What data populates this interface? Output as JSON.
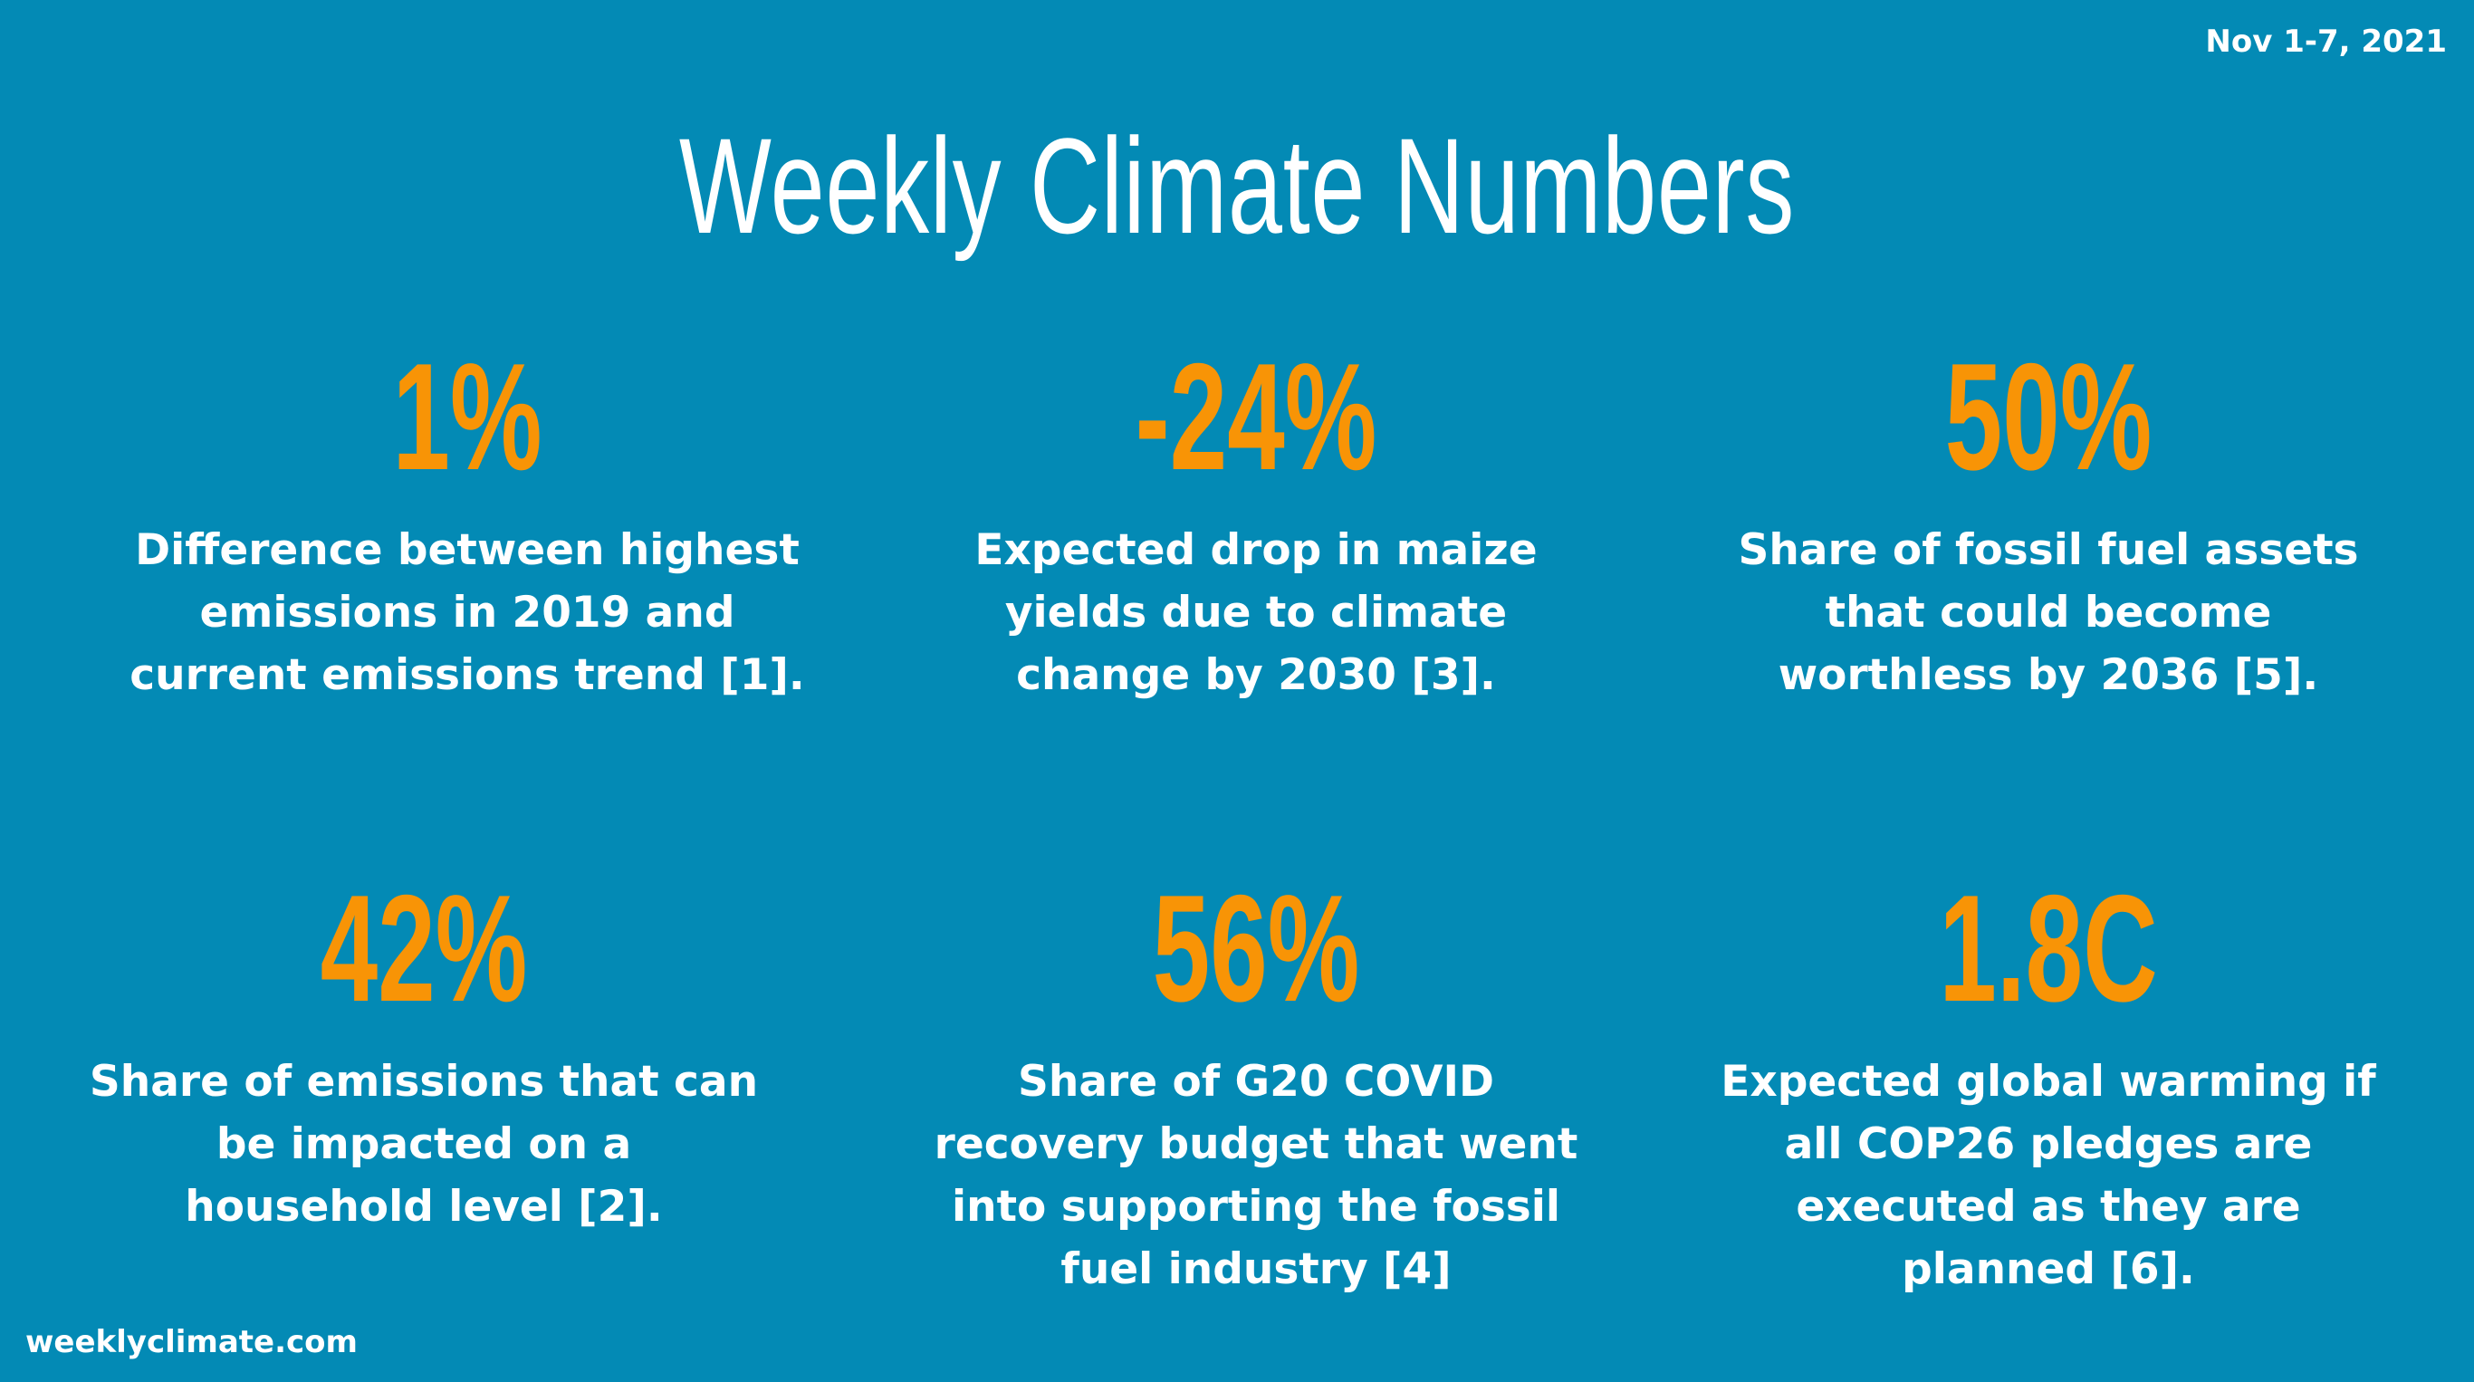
{
  "header": {
    "date": "Nov 1-7, 2021",
    "title": "Weekly Climate Numbers"
  },
  "stats": [
    {
      "value": "1%",
      "lines": [
        "Difference between highest",
        "emissions in 2019 and",
        "current emissions trend [1]."
      ]
    },
    {
      "value": "-24%",
      "lines": [
        "Expected drop in maize",
        "yields due to climate",
        "change by 2030 [3]."
      ]
    },
    {
      "value": "50%",
      "lines": [
        "Share of fossil fuel assets",
        "that could become",
        "worthless by 2036 [5]."
      ]
    },
    {
      "value": "42%",
      "lines": [
        "Share of emissions that can",
        "be impacted on a",
        "household level [2]."
      ]
    },
    {
      "value": "56%",
      "lines": [
        "Share of G20 COVID",
        "recovery budget that went",
        "into supporting the fossil",
        "fuel industry [4]"
      ]
    },
    {
      "value": "1.8C",
      "lines": [
        "Expected global warming if",
        "all COP26 pledges are",
        "executed as they are",
        "planned [6]."
      ]
    }
  ],
  "footer": {
    "site": "weeklyclimate.com"
  },
  "colors": {
    "background": "#038ab5",
    "accent": "#f89406",
    "text": "#ffffff"
  }
}
